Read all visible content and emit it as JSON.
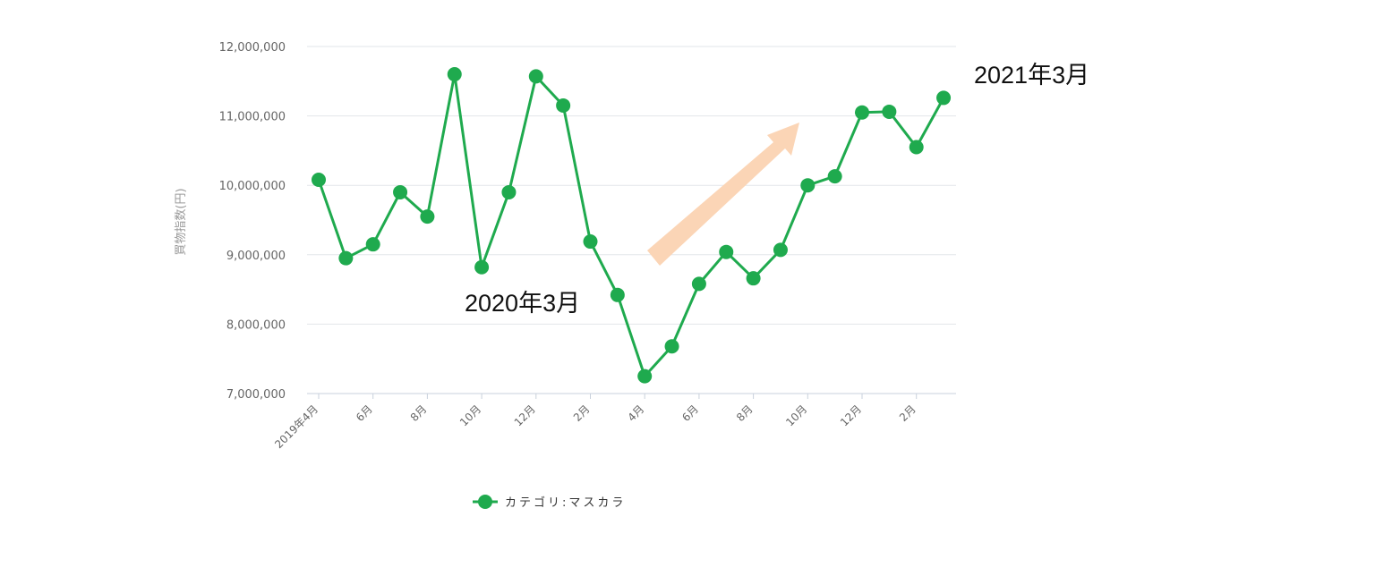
{
  "chart_data": {
    "type": "line",
    "ylabel": "買物指数(円)",
    "ylim": [
      7000000,
      12000000
    ],
    "y_ticks": [
      7000000,
      8000000,
      9000000,
      10000000,
      11000000,
      12000000
    ],
    "y_tick_labels": [
      "7,000,000",
      "8,000,000",
      "9,000,000",
      "10,000,000",
      "11,000,000",
      "12,000,000"
    ],
    "x": [
      "2019年4月",
      "5月",
      "6月",
      "7月",
      "8月",
      "9月",
      "10月",
      "11月",
      "12月",
      "1月",
      "2月",
      "3月",
      "4月",
      "5月",
      "6月",
      "7月",
      "8月",
      "9月",
      "10月",
      "11月",
      "12月",
      "1月",
      "2月",
      "3月"
    ],
    "x_tick_labels": [
      "2019年4月",
      "6月",
      "8月",
      "10月",
      "12月",
      "2月",
      "4月",
      "6月",
      "8月",
      "10月",
      "12月",
      "2月"
    ],
    "x_tick_index": [
      0,
      2,
      4,
      6,
      8,
      10,
      12,
      14,
      16,
      18,
      20,
      22
    ],
    "series": [
      {
        "name": "カテゴリ:マスカラ",
        "color": "#1faa4e",
        "values": [
          10080000,
          8950000,
          9150000,
          9900000,
          9550000,
          11600000,
          8820000,
          9900000,
          11570000,
          11150000,
          9190000,
          8420000,
          7250000,
          7680000,
          8580000,
          9040000,
          8660000,
          9070000,
          10000000,
          10130000,
          11050000,
          11060000,
          10550000,
          11260000
        ]
      }
    ],
    "grid": true,
    "legend_position": "bottom-left",
    "annotations": [
      {
        "text": "2020年3月",
        "index": 11
      },
      {
        "text": "2021年3月",
        "index": 23
      }
    ],
    "arrow_color": "#fbd5b6"
  }
}
